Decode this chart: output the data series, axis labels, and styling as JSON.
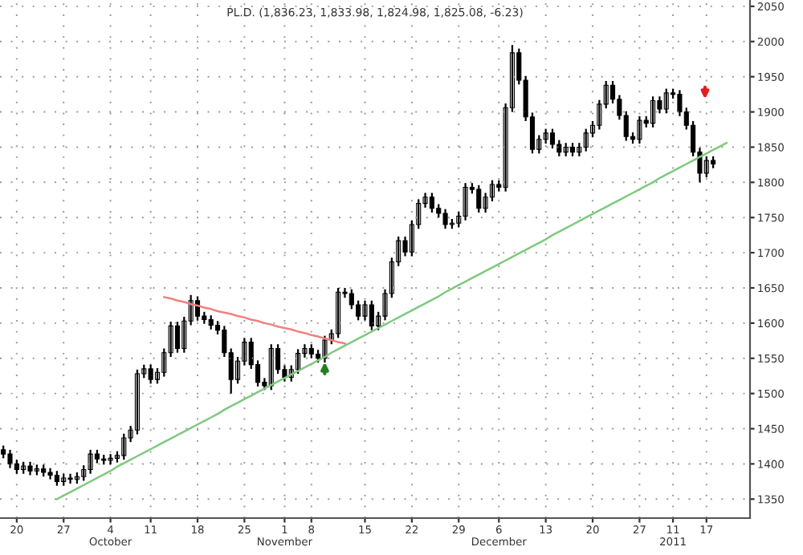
{
  "chart_data": {
    "type": "candlestick",
    "title": "PL.D. (1,836.23, 1,833.98, 1,824.98, 1,825.08, -6.23)",
    "categories": [
      null,
      null,
      "20",
      null,
      null,
      null,
      null,
      null,
      null,
      "27",
      null,
      null,
      null,
      null,
      null,
      null,
      "4\nOctober",
      null,
      null,
      null,
      null,
      null,
      "11",
      null,
      null,
      null,
      null,
      null,
      null,
      "18",
      null,
      null,
      null,
      null,
      null,
      null,
      "25",
      null,
      null,
      null,
      null,
      null,
      "1\nNovember",
      null,
      null,
      null,
      "8",
      null,
      null,
      null,
      null,
      null,
      null,
      null,
      "15",
      null,
      null,
      null,
      null,
      null,
      null,
      "22",
      null,
      null,
      null,
      null,
      null,
      null,
      "29",
      null,
      null,
      null,
      null,
      null,
      "6\nDecember",
      null,
      null,
      null,
      null,
      null,
      null,
      "13",
      null,
      null,
      null,
      null,
      null,
      null,
      "20",
      null,
      null,
      null,
      null,
      null,
      null,
      "27",
      null,
      null,
      null,
      null,
      "11\n2011",
      null,
      null,
      null,
      null,
      "17",
      null,
      null,
      null,
      null,
      null,
      null
    ],
    "ohlc": [
      [
        1420,
        1426,
        1408,
        1414
      ],
      [
        1414,
        1420,
        1394,
        1400
      ],
      [
        1400,
        1406,
        1386,
        1392
      ],
      [
        1392,
        1403,
        1386,
        1397
      ],
      [
        1397,
        1403,
        1384,
        1390
      ],
      [
        1390,
        1399,
        1384,
        1393
      ],
      [
        1393,
        1399,
        1382,
        1388
      ],
      [
        1388,
        1394,
        1378,
        1384
      ],
      [
        1384,
        1390,
        1369,
        1375
      ],
      [
        1375,
        1386,
        1369,
        1380
      ],
      [
        1380,
        1386,
        1372,
        1378
      ],
      [
        1378,
        1388,
        1372,
        1382
      ],
      [
        1382,
        1398,
        1376,
        1392
      ],
      [
        1392,
        1420,
        1386,
        1414
      ],
      [
        1414,
        1420,
        1401,
        1407
      ],
      [
        1407,
        1413,
        1399,
        1405
      ],
      [
        1405,
        1414,
        1399,
        1408
      ],
      [
        1408,
        1418,
        1402,
        1412
      ],
      [
        1412,
        1443,
        1406,
        1437
      ],
      [
        1437,
        1454,
        1431,
        1448
      ],
      [
        1448,
        1534,
        1442,
        1528
      ],
      [
        1528,
        1541,
        1522,
        1535
      ],
      [
        1535,
        1541,
        1514,
        1520
      ],
      [
        1520,
        1536,
        1514,
        1530
      ],
      [
        1530,
        1564,
        1524,
        1558
      ],
      [
        1558,
        1602,
        1552,
        1596
      ],
      [
        1596,
        1602,
        1558,
        1564
      ],
      [
        1564,
        1609,
        1558,
        1603
      ],
      [
        1603,
        1640,
        1597,
        1632
      ],
      [
        1632,
        1638,
        1604,
        1610
      ],
      [
        1610,
        1616,
        1599,
        1605
      ],
      [
        1605,
        1611,
        1591,
        1597
      ],
      [
        1597,
        1603,
        1584,
        1590
      ],
      [
        1590,
        1596,
        1552,
        1558
      ],
      [
        1558,
        1564,
        1500,
        1520
      ],
      [
        1520,
        1552,
        1514,
        1546
      ],
      [
        1546,
        1579,
        1540,
        1573
      ],
      [
        1573,
        1579,
        1535,
        1541
      ],
      [
        1541,
        1547,
        1510,
        1516
      ],
      [
        1516,
        1522,
        1505,
        1511
      ],
      [
        1511,
        1570,
        1505,
        1564
      ],
      [
        1564,
        1570,
        1528,
        1534
      ],
      [
        1534,
        1540,
        1517,
        1523
      ],
      [
        1523,
        1540,
        1517,
        1534
      ],
      [
        1534,
        1563,
        1528,
        1557
      ],
      [
        1557,
        1570,
        1551,
        1564
      ],
      [
        1564,
        1570,
        1550,
        1556
      ],
      [
        1556,
        1562,
        1544,
        1550
      ],
      [
        1550,
        1582,
        1544,
        1576
      ],
      [
        1576,
        1591,
        1570,
        1585
      ],
      [
        1585,
        1650,
        1579,
        1644
      ],
      [
        1644,
        1650,
        1636,
        1642
      ],
      [
        1642,
        1648,
        1620,
        1626
      ],
      [
        1626,
        1632,
        1604,
        1610
      ],
      [
        1610,
        1632,
        1604,
        1626
      ],
      [
        1626,
        1632,
        1590,
        1596
      ],
      [
        1596,
        1616,
        1590,
        1610
      ],
      [
        1610,
        1648,
        1604,
        1642
      ],
      [
        1642,
        1693,
        1636,
        1687
      ],
      [
        1687,
        1723,
        1681,
        1717
      ],
      [
        1717,
        1723,
        1695,
        1701
      ],
      [
        1701,
        1746,
        1695,
        1740
      ],
      [
        1740,
        1776,
        1734,
        1770
      ],
      [
        1770,
        1785,
        1764,
        1779
      ],
      [
        1779,
        1785,
        1757,
        1763
      ],
      [
        1763,
        1769,
        1750,
        1756
      ],
      [
        1756,
        1762,
        1734,
        1740
      ],
      [
        1740,
        1748,
        1734,
        1742
      ],
      [
        1742,
        1758,
        1736,
        1752
      ],
      [
        1752,
        1799,
        1746,
        1793
      ],
      [
        1793,
        1799,
        1784,
        1790
      ],
      [
        1790,
        1796,
        1757,
        1763
      ],
      [
        1763,
        1785,
        1757,
        1779
      ],
      [
        1779,
        1803,
        1773,
        1797
      ],
      [
        1797,
        1803,
        1787,
        1793
      ],
      [
        1793,
        1912,
        1787,
        1906
      ],
      [
        1906,
        1995,
        1900,
        1984
      ],
      [
        1984,
        1990,
        1939,
        1945
      ],
      [
        1945,
        1951,
        1887,
        1893
      ],
      [
        1893,
        1899,
        1841,
        1847
      ],
      [
        1847,
        1867,
        1841,
        1861
      ],
      [
        1861,
        1876,
        1855,
        1870
      ],
      [
        1870,
        1876,
        1848,
        1854
      ],
      [
        1854,
        1860,
        1837,
        1843
      ],
      [
        1843,
        1856,
        1837,
        1850
      ],
      [
        1850,
        1856,
        1837,
        1843
      ],
      [
        1843,
        1856,
        1837,
        1850
      ],
      [
        1850,
        1876,
        1844,
        1870
      ],
      [
        1870,
        1887,
        1864,
        1881
      ],
      [
        1881,
        1917,
        1875,
        1911
      ],
      [
        1911,
        1944,
        1905,
        1938
      ],
      [
        1938,
        1944,
        1912,
        1918
      ],
      [
        1918,
        1924,
        1889,
        1895
      ],
      [
        1895,
        1901,
        1859,
        1865
      ],
      [
        1865,
        1871,
        1855,
        1861
      ],
      [
        1861,
        1894,
        1855,
        1888
      ],
      [
        1888,
        1894,
        1878,
        1884
      ],
      [
        1884,
        1922,
        1878,
        1916
      ],
      [
        1916,
        1922,
        1898,
        1904
      ],
      [
        1904,
        1933,
        1898,
        1927
      ],
      [
        1927,
        1933,
        1919,
        1925
      ],
      [
        1925,
        1931,
        1894,
        1900
      ],
      [
        1900,
        1906,
        1875,
        1881
      ],
      [
        1881,
        1887,
        1837,
        1843
      ],
      [
        1843,
        1849,
        1800,
        1813
      ],
      [
        1813,
        1837,
        1807,
        1831
      ],
      [
        1831,
        1837,
        1820,
        1826
      ],
      null,
      null,
      null,
      null,
      null
    ],
    "color": "#000000",
    "series": [
      {
        "type": "line",
        "color": "#7fc97f",
        "values": [
          null,
          null,
          null,
          null,
          null,
          null,
          null,
          null,
          1350,
          1355,
          1360,
          1365,
          1370,
          1375,
          1380,
          1385,
          1390,
          1396,
          1401,
          1406,
          1411,
          1416,
          1421,
          1426,
          1431,
          1436,
          1441,
          1446,
          1451,
          1456,
          1461,
          1466,
          1471,
          1477,
          1482,
          1487,
          1492,
          1497,
          1502,
          1507,
          1512,
          1517,
          1522,
          1527,
          1532,
          1537,
          1542,
          1547,
          1552,
          1558,
          1563,
          1568,
          1573,
          1578,
          1583,
          1588,
          1593,
          1598,
          1603,
          1608,
          1613,
          1618,
          1623,
          1628,
          1633,
          1638,
          1644,
          1649,
          1654,
          1659,
          1664,
          1669,
          1674,
          1679,
          1684,
          1689,
          1694,
          1699,
          1704,
          1709,
          1714,
          1719,
          1725,
          1730,
          1735,
          1740,
          1745,
          1750,
          1755,
          1760,
          1765,
          1770,
          1775,
          1780,
          1785,
          1790,
          1795,
          1800,
          1806,
          1811,
          1816,
          1821,
          1826,
          1831,
          1836,
          1841,
          1846,
          1851,
          1856,
          null,
          null,
          null
        ]
      },
      {
        "type": "line",
        "color": "#f08080",
        "values": [
          null,
          null,
          null,
          null,
          null,
          null,
          null,
          null,
          null,
          null,
          null,
          null,
          null,
          null,
          null,
          null,
          null,
          null,
          null,
          null,
          null,
          null,
          null,
          null,
          1637,
          1635,
          1632,
          1630,
          1627,
          1625,
          1622,
          1620,
          1617,
          1615,
          1613,
          1610,
          1608,
          1605,
          1603,
          1600,
          1598,
          1595,
          1593,
          1591,
          1588,
          1586,
          1583,
          1581,
          1578,
          1576,
          1573,
          1571,
          null,
          null,
          null,
          null,
          null,
          null,
          null,
          null,
          null,
          null,
          null,
          null,
          null,
          null,
          null,
          null,
          null,
          null,
          null,
          null,
          null,
          null,
          null,
          null,
          null,
          null,
          null,
          null,
          null,
          null,
          null,
          null,
          null,
          null,
          null,
          null,
          null,
          null,
          null,
          null,
          null,
          null,
          null,
          null,
          null,
          null,
          null,
          null,
          null,
          null,
          null,
          null,
          null,
          null,
          null,
          null,
          null,
          null,
          null,
          null
        ]
      }
    ],
    "ylim": [
      1323,
      2059
    ],
    "yticks": [
      1350,
      1400,
      1450,
      1500,
      1550,
      1600,
      1650,
      1700,
      1750,
      1800,
      1850,
      1900,
      1950,
      2000,
      2050
    ],
    "grid": true
  }
}
